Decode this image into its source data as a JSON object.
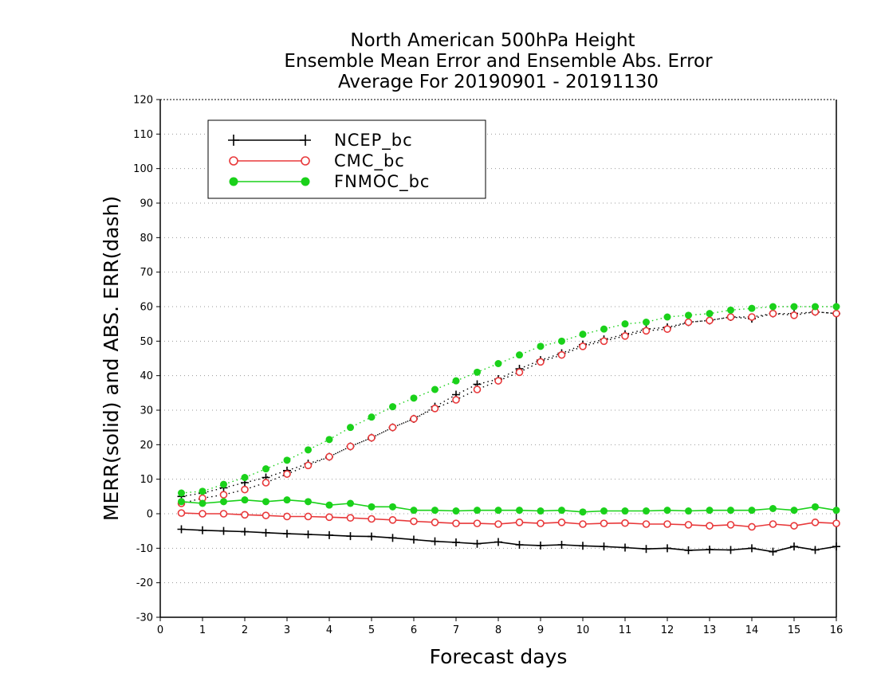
{
  "chart_data": {
    "type": "line",
    "title": [
      "North American 500hPa Height",
      "Ensemble Mean Error and Ensemble Abs. Error",
      "Average For 20190901 - 20191130"
    ],
    "xlabel": "Forecast days",
    "ylabel": "MERR(solid) and ABS. ERR(dash)",
    "xlim": [
      0,
      16
    ],
    "ylim": [
      -30,
      120
    ],
    "xticks": [
      0,
      1,
      2,
      3,
      4,
      5,
      6,
      7,
      8,
      9,
      10,
      11,
      12,
      13,
      14,
      15,
      16
    ],
    "yticks": [
      -30,
      -20,
      -10,
      0,
      10,
      20,
      30,
      40,
      50,
      60,
      70,
      80,
      90,
      100,
      110,
      120
    ],
    "ytick_labels": [
      "-30",
      "-20",
      "-10",
      "0",
      "10",
      "20",
      "30",
      "40",
      "50",
      "60",
      "70",
      "80",
      "90",
      "100",
      "110",
      "120"
    ],
    "grid": "horizontal-dotted",
    "legend_position": "top-left",
    "x": [
      0.5,
      1.0,
      1.5,
      2.0,
      2.5,
      3.0,
      3.5,
      4.0,
      4.5,
      5.0,
      5.5,
      6.0,
      6.5,
      7.0,
      7.5,
      8.0,
      8.5,
      9.0,
      9.5,
      10.0,
      10.5,
      11.0,
      11.5,
      12.0,
      12.5,
      13.0,
      13.5,
      14.0,
      14.5,
      15.0,
      15.5,
      16.0
    ],
    "series": [
      {
        "name": "NCEP_bc",
        "color": "#000000",
        "marker": "plus",
        "mean_error": [
          -4.5,
          -4.8,
          -5.0,
          -5.2,
          -5.5,
          -5.8,
          -6.0,
          -6.2,
          -6.5,
          -6.6,
          -7.0,
          -7.5,
          -8.0,
          -8.3,
          -8.7,
          -8.2,
          -9.0,
          -9.2,
          -9.0,
          -9.3,
          -9.5,
          -9.8,
          -10.2,
          -10.0,
          -10.6,
          -10.4,
          -10.5,
          -10.0,
          -11.0,
          -9.5,
          -10.5,
          -9.5
        ],
        "abs_error": [
          5.0,
          6.0,
          7.5,
          9.0,
          10.5,
          12.5,
          14.5,
          16.5,
          19.5,
          22.0,
          25.0,
          27.5,
          31.0,
          34.5,
          37.5,
          39.0,
          42.0,
          44.5,
          46.5,
          49.0,
          50.5,
          52.0,
          53.5,
          54.0,
          55.5,
          56.0,
          57.0,
          56.5,
          58.0,
          58.0,
          58.5,
          58.0
        ]
      },
      {
        "name": "CMC_bc",
        "color": "#e8383a",
        "marker": "open-circle",
        "mean_error": [
          0.2,
          0.0,
          0.0,
          -0.3,
          -0.5,
          -0.8,
          -0.8,
          -1.0,
          -1.2,
          -1.5,
          -1.8,
          -2.2,
          -2.5,
          -2.8,
          -2.8,
          -3.0,
          -2.5,
          -2.8,
          -2.5,
          -3.0,
          -2.8,
          -2.7,
          -3.0,
          -3.0,
          -3.2,
          -3.5,
          -3.2,
          -3.8,
          -3.0,
          -3.5,
          -2.5,
          -2.8
        ],
        "abs_error": [
          3.0,
          4.5,
          5.5,
          7.0,
          9.0,
          11.5,
          14.0,
          16.5,
          19.5,
          22.0,
          25.0,
          27.5,
          30.5,
          33.0,
          36.0,
          38.5,
          41.0,
          44.0,
          46.0,
          48.5,
          50.0,
          51.5,
          53.0,
          53.5,
          55.5,
          56.0,
          57.0,
          57.0,
          58.0,
          57.5,
          58.5,
          58.0
        ]
      },
      {
        "name": "FNMOC_bc",
        "color": "#1ad11a",
        "marker": "filled-circle",
        "mean_error": [
          3.5,
          3.0,
          3.5,
          4.0,
          3.5,
          4.0,
          3.5,
          2.5,
          3.0,
          2.0,
          2.0,
          1.0,
          1.0,
          0.8,
          1.0,
          1.0,
          1.0,
          0.8,
          1.0,
          0.5,
          0.8,
          0.8,
          0.8,
          1.0,
          0.8,
          1.0,
          1.0,
          1.0,
          1.5,
          1.0,
          2.0,
          1.0
        ],
        "abs_error": [
          6.0,
          6.5,
          8.5,
          10.5,
          13.0,
          15.5,
          18.5,
          21.5,
          25.0,
          28.0,
          31.0,
          33.5,
          36.0,
          38.5,
          41.0,
          43.5,
          46.0,
          48.5,
          50.0,
          52.0,
          53.5,
          55.0,
          55.5,
          57.0,
          57.5,
          58.0,
          59.0,
          59.5,
          60.0,
          60.0,
          60.0,
          60.0
        ]
      }
    ]
  }
}
